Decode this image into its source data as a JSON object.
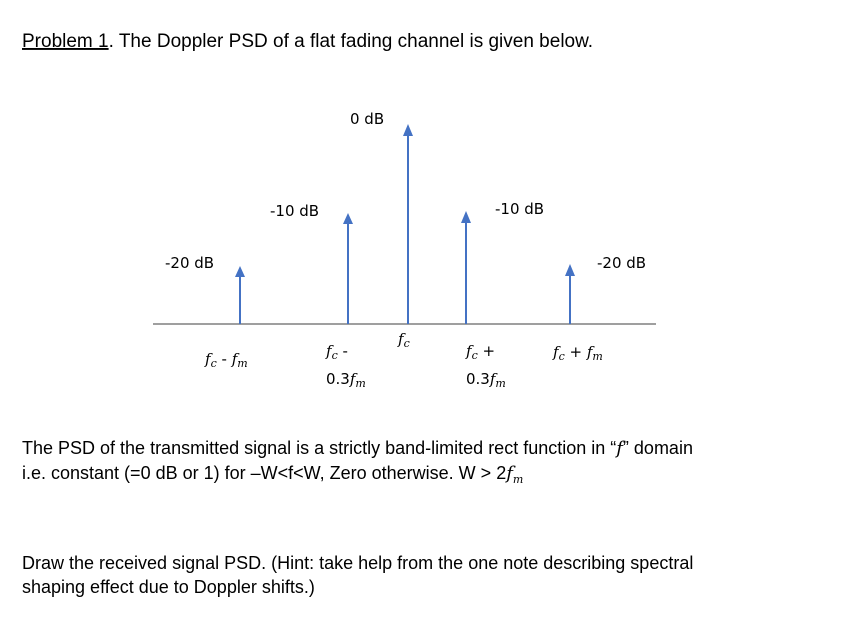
{
  "heading": {
    "label": "Problem 1",
    "text": ". The Doppler PSD of a flat fading channel is given below."
  },
  "diagram": {
    "lines": [
      {
        "level": "-20 dB",
        "freq": [
          [
            "f",
            "c",
            " - ",
            "f",
            "m"
          ]
        ]
      },
      {
        "level": "-10 dB",
        "freq": [
          [
            "f",
            "c",
            " -"
          ],
          [
            "0.3",
            "f",
            "m"
          ]
        ]
      },
      {
        "level": "0 dB",
        "freq": [
          [
            "f",
            "c"
          ]
        ]
      },
      {
        "level": "-10 dB",
        "freq": [
          [
            "f",
            "c",
            " +"
          ],
          [
            "0.3",
            "f",
            "m"
          ]
        ]
      },
      {
        "level": "-20 dB",
        "freq": [
          [
            "f",
            "c",
            " + ",
            "f",
            "m"
          ]
        ]
      }
    ]
  },
  "description": {
    "lines": [
      [
        "The PSD of the transmitted signal is a strictly band-limited rect function in “",
        "f",
        "” domain"
      ],
      [
        "i.e. constant (=0 dB or 1) for –W<f<W, Zero otherwise. W > 2",
        "f",
        "m"
      ]
    ]
  },
  "task": {
    "lines": [
      "Draw the received signal PSD. (Hint: take help from the one note describing spectral",
      "shaping effect due to Doppler shifts.)"
    ]
  }
}
